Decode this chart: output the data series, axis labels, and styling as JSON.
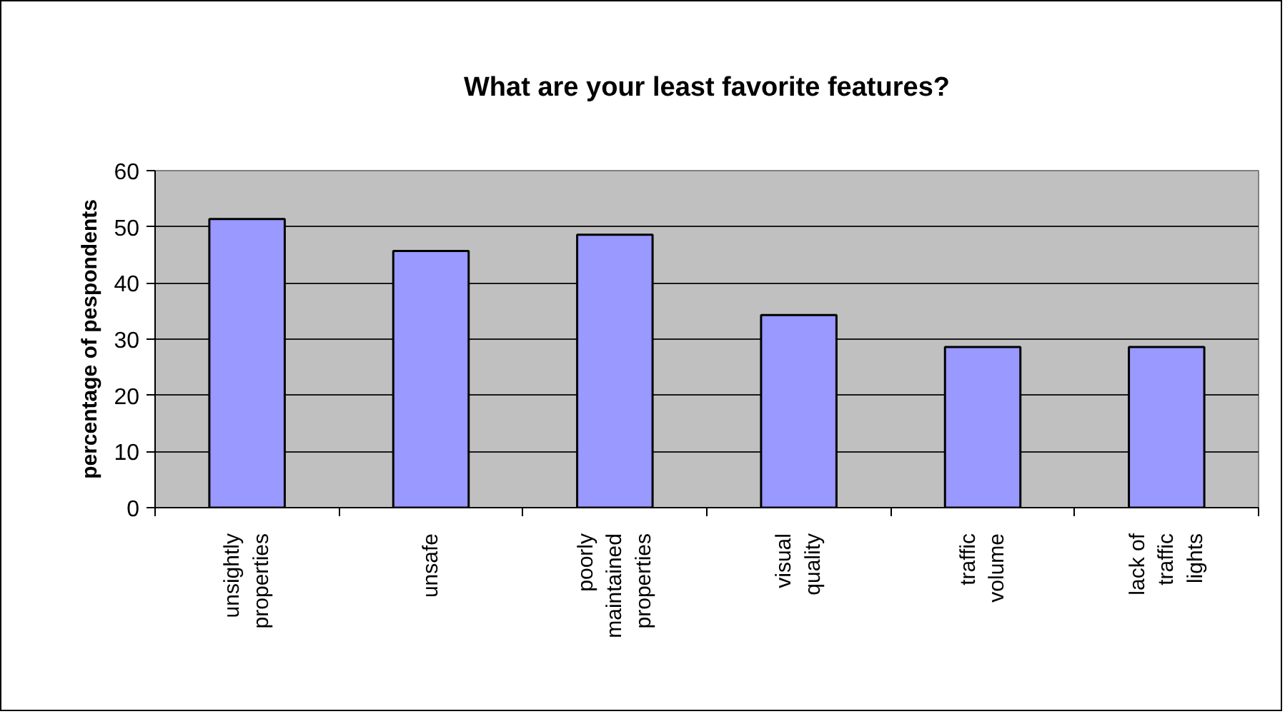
{
  "chart_data": {
    "type": "bar",
    "title": "What are your least favorite features?",
    "ylabel": "percentage of pespondents",
    "categories": [
      "unsightly properties",
      "unsafe",
      "poorly maintained properties",
      "visual quality",
      "traffic volume",
      "lack of traffic lights"
    ],
    "values": [
      51.4,
      45.7,
      48.6,
      34.3,
      28.6,
      28.6
    ],
    "color": "#9999ff",
    "ylim": [
      0,
      60
    ],
    "yticks": [
      0,
      10,
      20,
      30,
      40,
      50,
      60
    ],
    "grid": "y"
  }
}
